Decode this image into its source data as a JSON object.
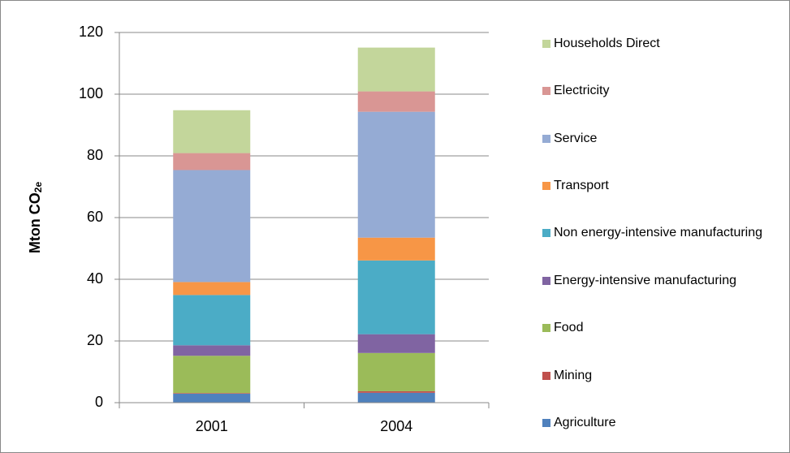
{
  "chart_data": {
    "type": "stacked_bar",
    "y_label": "Mton CO",
    "y_label_sub": "2e",
    "categories": [
      "2001",
      "2004"
    ],
    "series": [
      {
        "name": "Agriculture",
        "color": "#4f81bd",
        "values": [
          2.9,
          3.2
        ]
      },
      {
        "name": "Mining",
        "color": "#c0504d",
        "values": [
          0.2,
          0.5
        ]
      },
      {
        "name": "Food",
        "color": "#9bbb59",
        "values": [
          12.1,
          12.4
        ]
      },
      {
        "name": "Energy-intensive manufacturing",
        "color": "#8064a2",
        "values": [
          3.4,
          6.1
        ]
      },
      {
        "name": "Non energy-intensive manufacturing",
        "color": "#4bacc6",
        "values": [
          16.3,
          23.9
        ]
      },
      {
        "name": "Transport",
        "color": "#f79646",
        "values": [
          4.2,
          7.4
        ]
      },
      {
        "name": "Service",
        "color": "#95abd4",
        "values": [
          36.3,
          40.8
        ]
      },
      {
        "name": "Electricity",
        "color": "#d99694",
        "values": [
          5.5,
          6.6
        ]
      },
      {
        "name": "Households Direct",
        "color": "#c3d69b",
        "values": [
          13.9,
          14.2
        ]
      }
    ],
    "ylim": [
      0,
      120
    ],
    "yticks": [
      0,
      20,
      40,
      60,
      80,
      100,
      120
    ],
    "grid": true,
    "legend": "right"
  }
}
